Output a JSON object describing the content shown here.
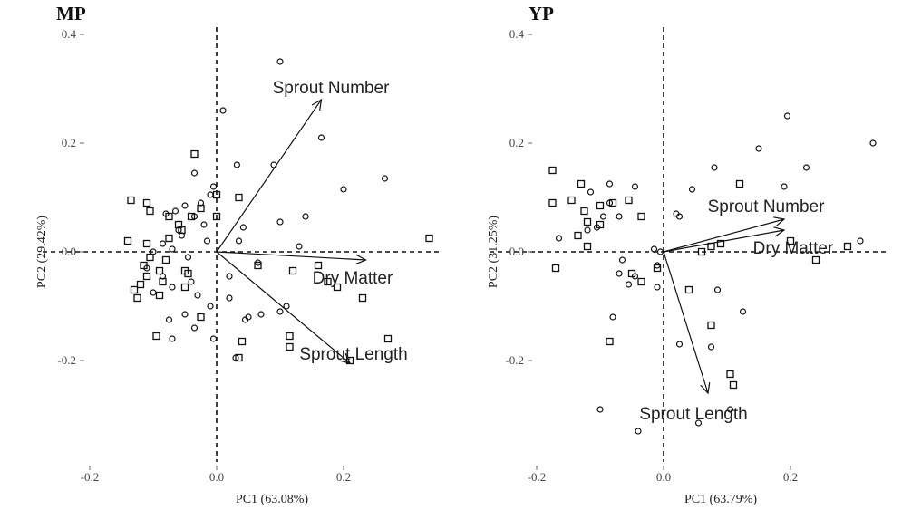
{
  "chart_data": [
    {
      "type": "scatter",
      "title": "MP",
      "xlabel": "PC1 (63.08%)",
      "ylabel": "PC2 (29.42%)",
      "xlim": [
        -0.26,
        0.34
      ],
      "ylim": [
        -0.42,
        0.4
      ],
      "x_ticks": [
        "-0.2",
        "0.0",
        "0.2"
      ],
      "y_ticks": [
        "-0.2",
        "0.0",
        "0.2",
        "0.4"
      ],
      "loadings": [
        {
          "name": "Sprout Number",
          "x": 0.165,
          "y": 0.28
        },
        {
          "name": "Dry Matter",
          "x": 0.235,
          "y": -0.015
        },
        {
          "name": "Sprout Length",
          "x": 0.21,
          "y": -0.205
        }
      ],
      "series": [
        {
          "marker": "circle",
          "points": [
            [
              0.1,
              0.35
            ],
            [
              0.165,
              0.21
            ],
            [
              0.01,
              0.26
            ],
            [
              0.032,
              0.16
            ],
            [
              0.09,
              0.16
            ],
            [
              0.2,
              0.115
            ],
            [
              0.265,
              0.135
            ],
            [
              0.14,
              0.065
            ],
            [
              0.1,
              0.055
            ],
            [
              0.13,
              0.01
            ],
            [
              0.042,
              0.045
            ],
            [
              0.035,
              0.02
            ],
            [
              -0.035,
              0.145
            ],
            [
              -0.005,
              0.12
            ],
            [
              -0.01,
              0.105
            ],
            [
              -0.025,
              0.09
            ],
            [
              -0.05,
              0.085
            ],
            [
              -0.065,
              0.075
            ],
            [
              -0.08,
              0.07
            ],
            [
              -0.035,
              0.065
            ],
            [
              -0.02,
              0.05
            ],
            [
              -0.06,
              0.04
            ],
            [
              -0.055,
              0.03
            ],
            [
              -0.015,
              0.02
            ],
            [
              -0.085,
              0.015
            ],
            [
              -0.1,
              0.0
            ],
            [
              -0.07,
              0.005
            ],
            [
              -0.045,
              -0.01
            ],
            [
              -0.11,
              -0.03
            ],
            [
              -0.085,
              -0.045
            ],
            [
              -0.04,
              -0.055
            ],
            [
              -0.07,
              -0.065
            ],
            [
              -0.1,
              -0.075
            ],
            [
              -0.03,
              -0.08
            ],
            [
              -0.05,
              -0.115
            ],
            [
              -0.01,
              -0.1
            ],
            [
              -0.075,
              -0.125
            ],
            [
              -0.035,
              -0.14
            ],
            [
              0.02,
              -0.085
            ],
            [
              0.045,
              -0.125
            ],
            [
              0.07,
              -0.115
            ],
            [
              0.1,
              -0.11
            ],
            [
              -0.07,
              -0.16
            ],
            [
              -0.005,
              -0.16
            ],
            [
              0.03,
              -0.195
            ],
            [
              0.05,
              -0.12
            ],
            [
              0.11,
              -0.1
            ],
            [
              0.02,
              -0.045
            ],
            [
              0.065,
              -0.02
            ]
          ]
        },
        {
          "marker": "square",
          "points": [
            [
              -0.035,
              0.18
            ],
            [
              -0.135,
              0.095
            ],
            [
              -0.11,
              0.09
            ],
            [
              -0.105,
              0.075
            ],
            [
              -0.025,
              0.08
            ],
            [
              -0.04,
              0.065
            ],
            [
              -0.075,
              0.065
            ],
            [
              -0.06,
              0.05
            ],
            [
              -0.055,
              0.04
            ],
            [
              -0.075,
              0.025
            ],
            [
              -0.14,
              0.02
            ],
            [
              -0.11,
              0.015
            ],
            [
              -0.105,
              -0.01
            ],
            [
              -0.115,
              -0.025
            ],
            [
              -0.09,
              -0.035
            ],
            [
              -0.11,
              -0.045
            ],
            [
              -0.085,
              -0.055
            ],
            [
              -0.12,
              -0.06
            ],
            [
              -0.13,
              -0.07
            ],
            [
              -0.09,
              -0.08
            ],
            [
              -0.045,
              -0.04
            ],
            [
              -0.05,
              -0.065
            ],
            [
              -0.125,
              -0.085
            ],
            [
              -0.025,
              -0.12
            ],
            [
              -0.095,
              -0.155
            ],
            [
              0.0,
              0.105
            ],
            [
              0.035,
              0.1
            ],
            [
              0.0,
              0.065
            ],
            [
              0.065,
              -0.025
            ],
            [
              0.12,
              -0.035
            ],
            [
              0.16,
              -0.025
            ],
            [
              0.19,
              -0.065
            ],
            [
              0.23,
              -0.085
            ],
            [
              0.175,
              -0.055
            ],
            [
              0.115,
              -0.155
            ],
            [
              0.115,
              -0.175
            ],
            [
              0.21,
              -0.2
            ],
            [
              0.27,
              -0.16
            ],
            [
              0.335,
              0.025
            ],
            [
              0.04,
              -0.165
            ],
            [
              0.035,
              -0.195
            ],
            [
              -0.05,
              -0.035
            ],
            [
              -0.08,
              -0.015
            ]
          ]
        }
      ]
    },
    {
      "type": "scatter",
      "title": "YP",
      "xlabel": "PC1 (63.79%)",
      "ylabel": "PC2 (31.25%)",
      "xlim": [
        -0.26,
        0.34
      ],
      "ylim": [
        -0.42,
        0.4
      ],
      "x_ticks": [
        "-0.2",
        "0.0",
        "0.2"
      ],
      "y_ticks": [
        "-0.2",
        "0.0",
        "0.2",
        "0.4"
      ],
      "loadings": [
        {
          "name": "Sprout Number",
          "x": 0.19,
          "y": 0.06
        },
        {
          "name": "Dry Matter",
          "x": 0.19,
          "y": 0.04
        },
        {
          "name": "Sprout Length",
          "x": 0.07,
          "y": -0.26
        }
      ],
      "series": [
        {
          "marker": "circle",
          "points": [
            [
              0.195,
              0.25
            ],
            [
              0.33,
              0.2
            ],
            [
              0.15,
              0.19
            ],
            [
              0.225,
              0.155
            ],
            [
              0.08,
              0.155
            ],
            [
              0.19,
              0.12
            ],
            [
              0.025,
              0.065
            ],
            [
              0.31,
              0.02
            ],
            [
              -0.015,
              0.005
            ],
            [
              -0.005,
              0.0
            ],
            [
              -0.045,
              0.12
            ],
            [
              -0.085,
              0.125
            ],
            [
              -0.115,
              0.11
            ],
            [
              -0.085,
              0.09
            ],
            [
              -0.07,
              0.065
            ],
            [
              -0.095,
              0.065
            ],
            [
              -0.105,
              0.045
            ],
            [
              -0.12,
              0.04
            ],
            [
              -0.165,
              0.025
            ],
            [
              -0.065,
              -0.015
            ],
            [
              -0.07,
              -0.04
            ],
            [
              -0.045,
              -0.045
            ],
            [
              -0.055,
              -0.06
            ],
            [
              -0.01,
              -0.025
            ],
            [
              -0.01,
              -0.065
            ],
            [
              -0.08,
              -0.12
            ],
            [
              0.085,
              -0.07
            ],
            [
              0.125,
              -0.11
            ],
            [
              0.025,
              -0.17
            ],
            [
              0.075,
              -0.175
            ],
            [
              -0.1,
              -0.29
            ],
            [
              -0.04,
              -0.33
            ],
            [
              0.055,
              -0.315
            ],
            [
              0.105,
              -0.29
            ],
            [
              0.045,
              0.115
            ],
            [
              0.02,
              0.07
            ]
          ]
        },
        {
          "marker": "square",
          "points": [
            [
              -0.175,
              0.15
            ],
            [
              -0.13,
              0.125
            ],
            [
              -0.175,
              0.09
            ],
            [
              -0.145,
              0.095
            ],
            [
              -0.125,
              0.075
            ],
            [
              -0.1,
              0.085
            ],
            [
              -0.08,
              0.09
            ],
            [
              -0.055,
              0.095
            ],
            [
              -0.035,
              0.065
            ],
            [
              -0.12,
              0.055
            ],
            [
              -0.1,
              0.05
            ],
            [
              -0.135,
              0.03
            ],
            [
              -0.12,
              0.01
            ],
            [
              -0.17,
              -0.03
            ],
            [
              -0.085,
              -0.165
            ],
            [
              -0.05,
              -0.04
            ],
            [
              -0.035,
              -0.055
            ],
            [
              0.04,
              -0.07
            ],
            [
              0.075,
              -0.135
            ],
            [
              0.105,
              -0.225
            ],
            [
              0.11,
              -0.245
            ],
            [
              0.12,
              0.125
            ],
            [
              0.075,
              0.01
            ],
            [
              0.06,
              0.0
            ],
            [
              0.09,
              0.015
            ],
            [
              0.24,
              -0.015
            ],
            [
              0.29,
              0.01
            ],
            [
              0.2,
              0.02
            ],
            [
              -0.01,
              -0.03
            ]
          ]
        }
      ]
    }
  ]
}
